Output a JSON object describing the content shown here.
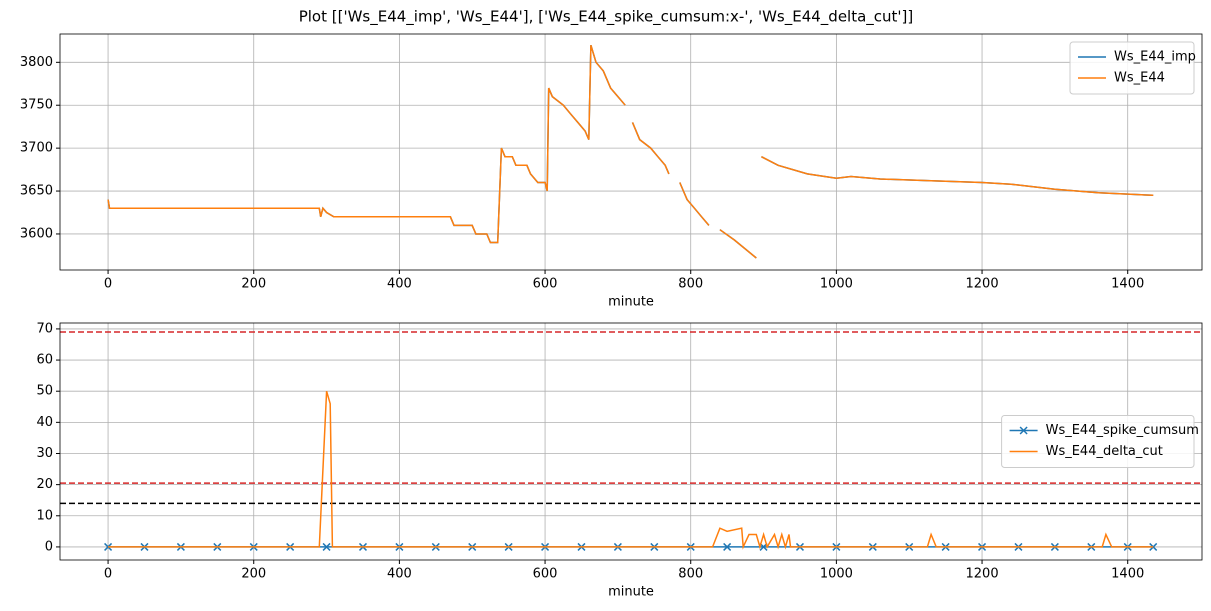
{
  "title": "Plot [['Ws_E44_imp', 'Ws_E44'], ['Ws_E44_spike_cumsum:x-', 'Ws_E44_delta_cut']]",
  "chart_data": [
    {
      "type": "line",
      "xlabel": "minute",
      "xlim": [
        -66,
        1502
      ],
      "xticks": [
        0,
        200,
        400,
        600,
        800,
        1000,
        1200,
        1400
      ],
      "ylim": [
        3558,
        3833
      ],
      "yticks": [
        3600,
        3650,
        3700,
        3750,
        3800
      ],
      "grid": true,
      "legend": "upper right",
      "series": [
        {
          "name": "Ws_E44_imp",
          "color": "#1f77b4",
          "x": [
            0,
            2,
            290,
            292,
            295,
            300,
            310,
            470,
            475,
            500,
            505,
            520,
            525,
            535,
            540,
            545,
            555,
            560,
            575,
            580,
            590,
            600,
            603,
            605,
            610,
            625,
            635,
            645,
            655,
            660,
            663,
            670,
            680,
            690,
            700,
            710,
            715,
            720,
            730,
            745,
            755,
            765,
            770,
            775,
            785,
            790,
            795,
            805,
            815,
            825,
            830,
            840,
            860,
            890,
            893,
            897,
            920,
            960,
            1000,
            1020,
            1060,
            1130,
            1200,
            1240,
            1300,
            1360,
            1435
          ],
          "values": [
            3640,
            3630,
            3630,
            3620,
            3630,
            3625,
            3620,
            3620,
            3610,
            3610,
            3600,
            3600,
            3590,
            3590,
            3700,
            3690,
            3690,
            3680,
            3680,
            3670,
            3660,
            3660,
            3650,
            3770,
            3760,
            3750,
            3740,
            3730,
            3720,
            3710,
            3820,
            3800,
            3790,
            3770,
            3760,
            3750,
            null,
            3730,
            3710,
            3700,
            3690,
            3680,
            3670,
            null,
            3660,
            3650,
            3640,
            3630,
            3620,
            3610,
            null,
            3605,
            3593,
            3572,
            null,
            3690,
            3680,
            3670,
            3665,
            3667,
            3664,
            3662,
            3660,
            3658,
            3652,
            3648,
            3645
          ]
        },
        {
          "name": "Ws_E44",
          "color": "#ff7f0e",
          "x": [
            0,
            2,
            290,
            292,
            295,
            300,
            310,
            470,
            475,
            500,
            505,
            520,
            525,
            535,
            540,
            545,
            555,
            560,
            575,
            580,
            590,
            600,
            603,
            605,
            610,
            625,
            635,
            645,
            655,
            660,
            663,
            670,
            680,
            690,
            700,
            710,
            715,
            720,
            730,
            745,
            755,
            765,
            770,
            775,
            785,
            790,
            795,
            805,
            815,
            825,
            830,
            840,
            860,
            890,
            893,
            897,
            920,
            960,
            1000,
            1020,
            1060,
            1130,
            1200,
            1240,
            1300,
            1360,
            1435
          ],
          "values": [
            3640,
            3630,
            3630,
            3620,
            3630,
            3625,
            3620,
            3620,
            3610,
            3610,
            3600,
            3600,
            3590,
            3590,
            3700,
            3690,
            3690,
            3680,
            3680,
            3670,
            3660,
            3660,
            3650,
            3770,
            3760,
            3750,
            3740,
            3730,
            3720,
            3710,
            3820,
            3800,
            3790,
            3770,
            3760,
            3750,
            null,
            3730,
            3710,
            3700,
            3690,
            3680,
            3670,
            null,
            3660,
            3650,
            3640,
            3630,
            3620,
            3610,
            null,
            3605,
            3593,
            3572,
            null,
            3690,
            3680,
            3670,
            3665,
            3667,
            3664,
            3662,
            3660,
            3658,
            3652,
            3648,
            3645
          ]
        }
      ]
    },
    {
      "type": "line",
      "xlabel": "minute",
      "xlim": [
        -66,
        1502
      ],
      "xticks": [
        0,
        200,
        400,
        600,
        800,
        1000,
        1200,
        1400
      ],
      "ylim": [
        -4.2,
        71.9
      ],
      "yticks": [
        0,
        10,
        20,
        30,
        40,
        50,
        60,
        70
      ],
      "grid": true,
      "legend": "center right",
      "hlines": [
        {
          "value": 69,
          "color": "#d62728"
        },
        {
          "value": 20.5,
          "color": "#d62728"
        },
        {
          "value": 14,
          "color": "#000000"
        }
      ],
      "series": [
        {
          "name": "Ws_E44_spike_cumsum",
          "color": "#1f77b4",
          "marker": "x",
          "x": [
            0,
            50,
            100,
            150,
            200,
            250,
            300,
            350,
            400,
            450,
            500,
            550,
            600,
            650,
            700,
            750,
            800,
            850,
            900,
            950,
            1000,
            1050,
            1100,
            1150,
            1200,
            1250,
            1300,
            1350,
            1400,
            1435
          ],
          "values": [
            0,
            0,
            0,
            0,
            0,
            0,
            0,
            0,
            0,
            0,
            0,
            0,
            0,
            0,
            0,
            0,
            0,
            0,
            0,
            0,
            0,
            0,
            0,
            0,
            0,
            0,
            0,
            0,
            0,
            0
          ]
        },
        {
          "name": "Ws_E44_delta_cut",
          "color": "#ff7f0e",
          "x": [
            0,
            290,
            300,
            305,
            308,
            830,
            840,
            850,
            870,
            872,
            880,
            890,
            895,
            900,
            905,
            915,
            920,
            925,
            930,
            935,
            937,
            1125,
            1130,
            1137,
            1365,
            1370,
            1378,
            1435
          ],
          "values": [
            0,
            0,
            50,
            46,
            0,
            0,
            6,
            5,
            6,
            0,
            4,
            4,
            0,
            4,
            0,
            4,
            0,
            4,
            0,
            4,
            0,
            0,
            4,
            0,
            0,
            4,
            0,
            0
          ]
        }
      ]
    }
  ]
}
